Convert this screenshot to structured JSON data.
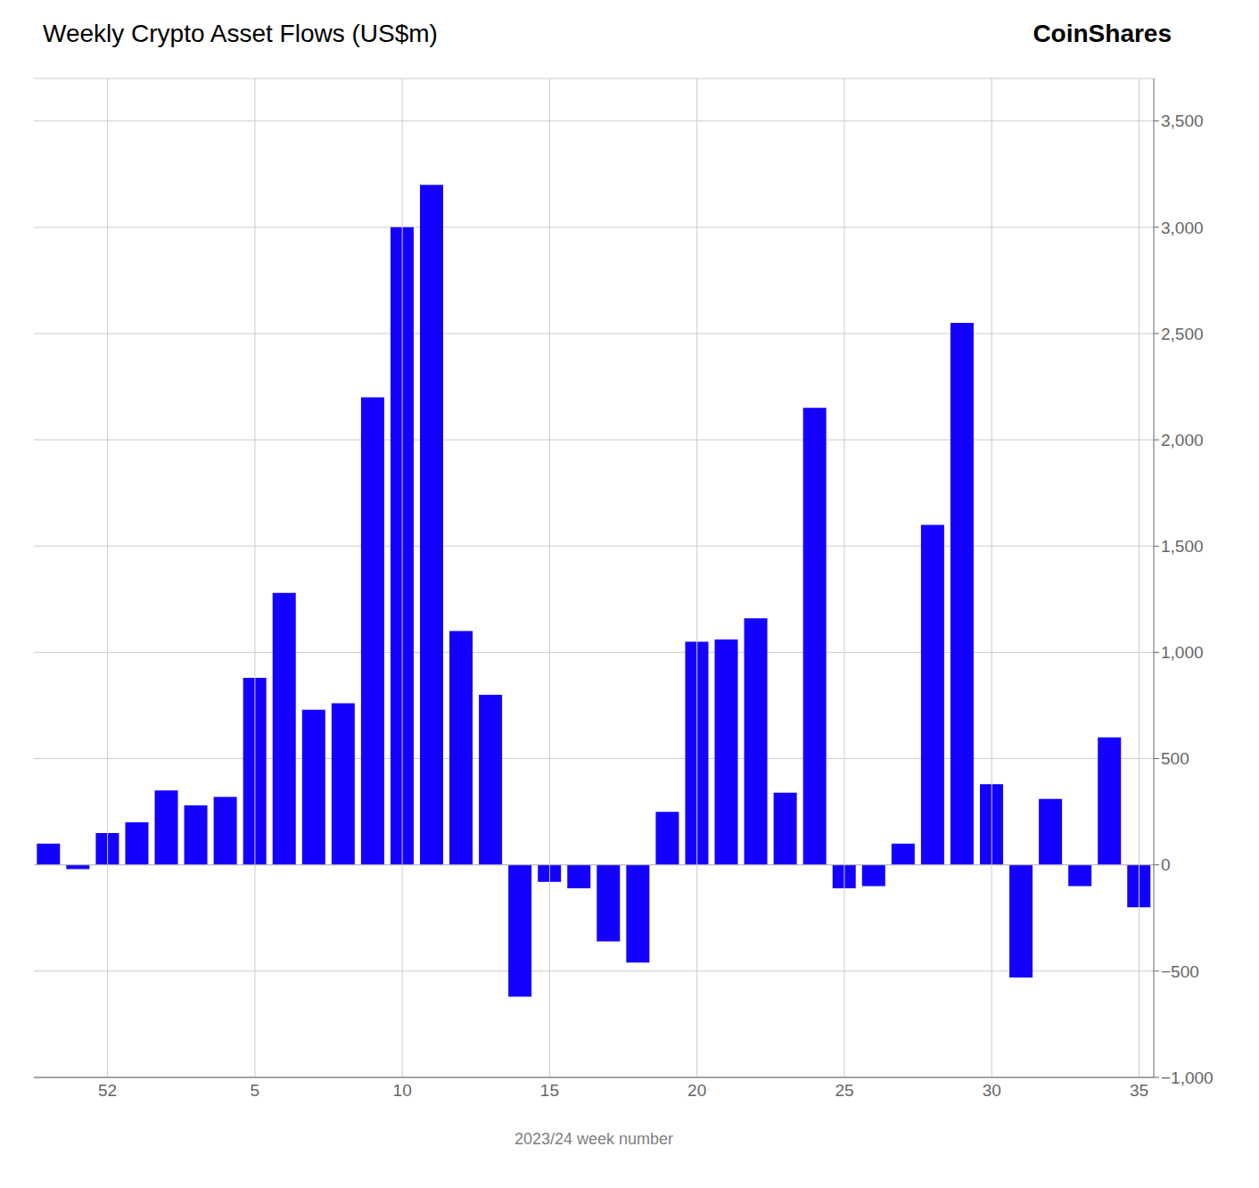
{
  "chart_data": {
    "type": "bar",
    "title": "Weekly Crypto Asset Flows (US$m)",
    "annotations": [
      "CoinShares"
    ],
    "xlabel": "2023/24 week number",
    "categories": [
      null,
      null,
      "52",
      null,
      null,
      null,
      null,
      "5",
      null,
      null,
      null,
      null,
      "10",
      null,
      null,
      null,
      null,
      "15",
      null,
      null,
      null,
      null,
      "20",
      null,
      null,
      null,
      null,
      "25",
      null,
      null,
      null,
      null,
      "30",
      null,
      null,
      null,
      null,
      "35"
    ],
    "values": [
      100,
      -20,
      150,
      200,
      350,
      280,
      320,
      880,
      1280,
      730,
      760,
      2200,
      3000,
      3200,
      1100,
      800,
      -620,
      -80,
      -110,
      -360,
      -460,
      250,
      1050,
      1060,
      1160,
      340,
      2150,
      -110,
      -100,
      100,
      1600,
      2550,
      380,
      -530,
      310,
      -100,
      600,
      -200
    ],
    "color": "#1400FF",
    "ylim": [
      -1000,
      3700
    ],
    "yticks": [
      {
        "value": -1000,
        "label": "−1,000"
      },
      {
        "value": -500,
        "label": "−500"
      },
      0,
      500,
      {
        "value": 1000,
        "label": "1,000"
      },
      {
        "value": 1500,
        "label": "1,500"
      },
      {
        "value": 2000,
        "label": "2,000"
      },
      {
        "value": 2500,
        "label": "2,500"
      },
      {
        "value": 3000,
        "label": "3,000"
      },
      {
        "value": 3500,
        "label": "3,500"
      }
    ],
    "grid": true
  }
}
